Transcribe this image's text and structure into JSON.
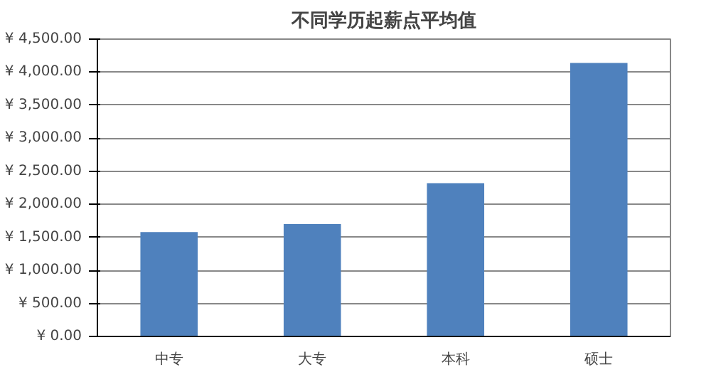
{
  "chart_data": {
    "type": "bar",
    "title": "不同学历起薪点平均值",
    "categories": [
      "中专",
      "大专",
      "本科",
      "硕士"
    ],
    "values": [
      1580,
      1700,
      2320,
      4140
    ],
    "color": "#4f81bd",
    "ylim": [
      0,
      4500
    ],
    "yticks": [
      {
        "value": 0,
        "label": "¥ 0.00"
      },
      {
        "value": 500,
        "label": "¥ 500.00"
      },
      {
        "value": 1000,
        "label": "¥ 1,000.00"
      },
      {
        "value": 1500,
        "label": "¥ 1,500.00"
      },
      {
        "value": 2000,
        "label": "¥ 2,000.00"
      },
      {
        "value": 2500,
        "label": "¥ 2,500.00"
      },
      {
        "value": 3000,
        "label": "¥ 3,000.00"
      },
      {
        "value": 3500,
        "label": "¥ 3,500.00"
      },
      {
        "value": 4000,
        "label": "¥ 4,000.00"
      },
      {
        "value": 4500,
        "label": "¥ 4,500.00"
      }
    ],
    "grid": "y"
  }
}
